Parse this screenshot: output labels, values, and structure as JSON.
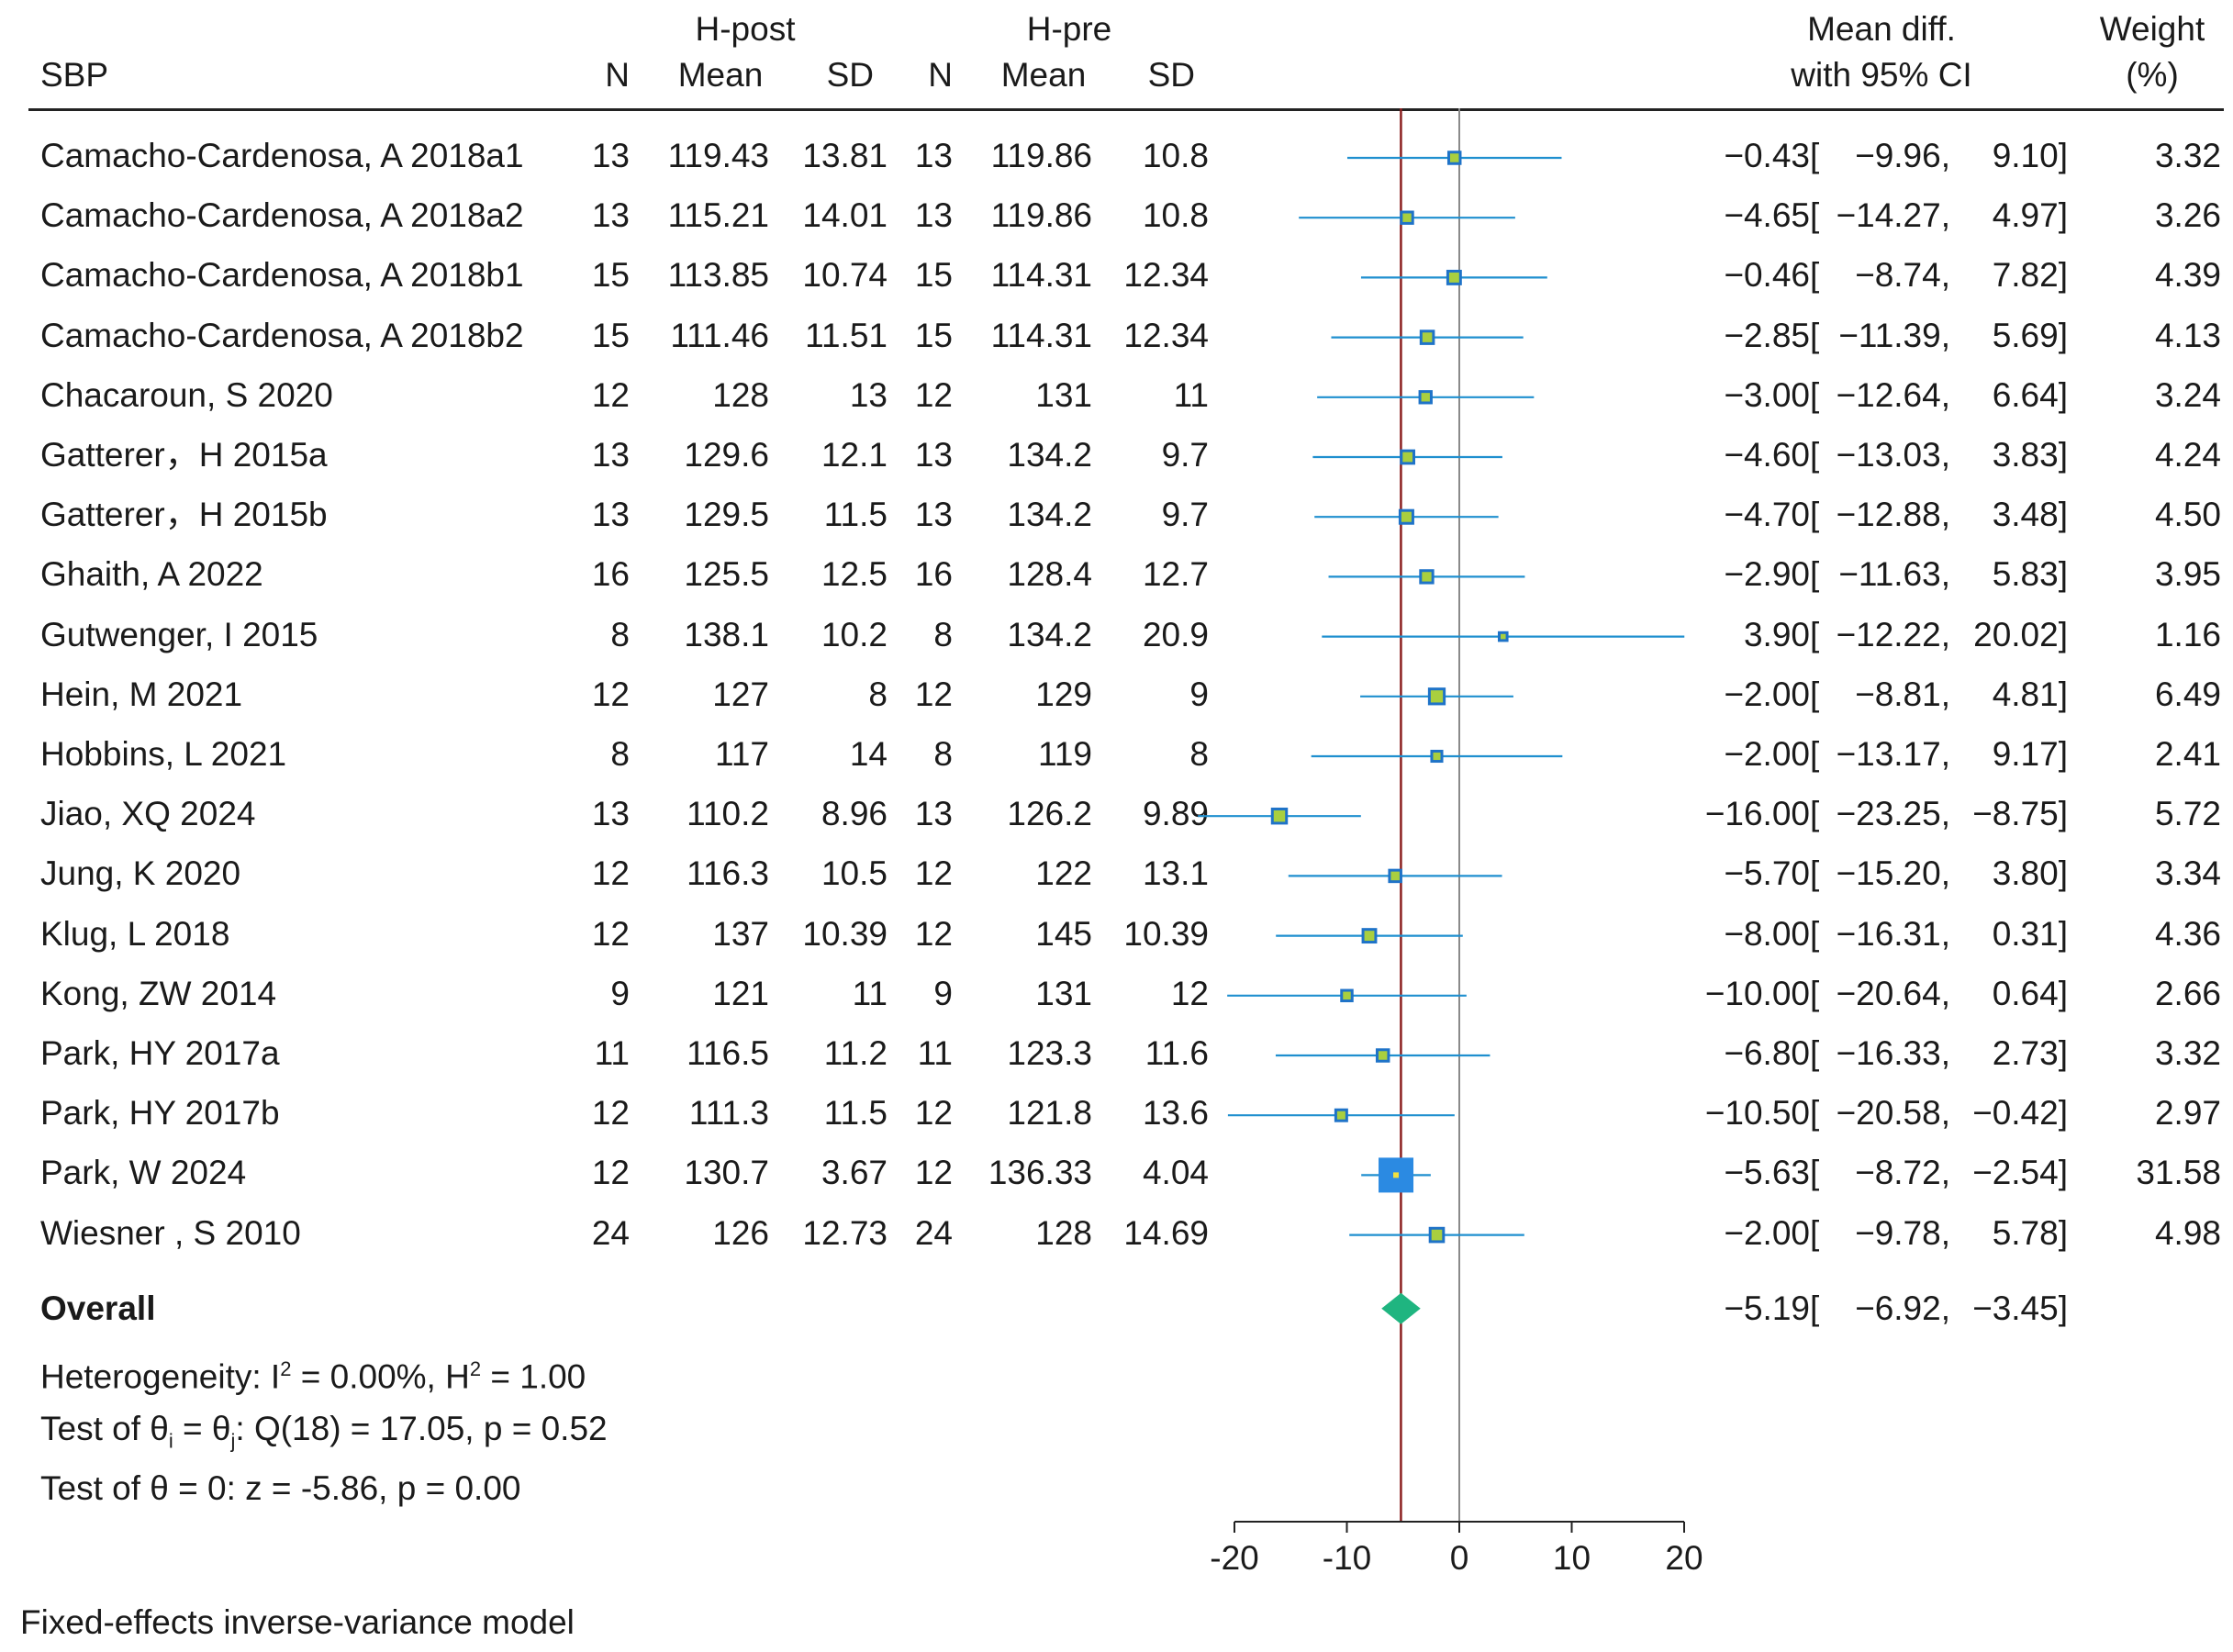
{
  "header": {
    "outcome": "SBP",
    "group1_label": "H-post",
    "group2_label": "H-pre",
    "col_n": "N",
    "col_mean": "Mean",
    "col_sd": "SD",
    "effect_header_line1": "Mean diff.",
    "effect_header_line2": "with 95% CI",
    "weight_header_line1": "Weight",
    "weight_header_line2": "(%)"
  },
  "studies": [
    {
      "name": "Camacho-Cardenosa, A 2018a1",
      "n1": "13",
      "mean1": "119.43",
      "sd1": "13.81",
      "n2": "13",
      "mean2": "119.86",
      "sd2": "10.8",
      "est": -0.43,
      "lo": -9.96,
      "hi": 9.1,
      "ci_text": "−0.43 [ −9.96, 9.10]",
      "est_text": "−0.43",
      "lo_text": "−9.96,",
      "hi_text": "9.10]",
      "weight": "3.32",
      "w": 3.32
    },
    {
      "name": "Camacho-Cardenosa, A 2018a2",
      "n1": "13",
      "mean1": "115.21",
      "sd1": "14.01",
      "n2": "13",
      "mean2": "119.86",
      "sd2": "10.8",
      "est": -4.65,
      "lo": -14.27,
      "hi": 4.97,
      "est_text": "−4.65",
      "lo_text": "−14.27,",
      "hi_text": "4.97]",
      "weight": "3.26",
      "w": 3.26
    },
    {
      "name": "Camacho-Cardenosa, A 2018b1",
      "n1": "15",
      "mean1": "113.85",
      "sd1": "10.74",
      "n2": "15",
      "mean2": "114.31",
      "sd2": "12.34",
      "est": -0.46,
      "lo": -8.74,
      "hi": 7.82,
      "est_text": "−0.46",
      "lo_text": "−8.74,",
      "hi_text": "7.82]",
      "weight": "4.39",
      "w": 4.39
    },
    {
      "name": "Camacho-Cardenosa, A 2018b2",
      "n1": "15",
      "mean1": "111.46",
      "sd1": "11.51",
      "n2": "15",
      "mean2": "114.31",
      "sd2": "12.34",
      "est": -2.85,
      "lo": -11.39,
      "hi": 5.69,
      "est_text": "−2.85",
      "lo_text": "−11.39,",
      "hi_text": "5.69]",
      "weight": "4.13",
      "w": 4.13
    },
    {
      "name": "Chacaroun, S 2020",
      "n1": "12",
      "mean1": "128",
      "sd1": "13",
      "n2": "12",
      "mean2": "131",
      "sd2": "11",
      "est": -3.0,
      "lo": -12.64,
      "hi": 6.64,
      "est_text": "−3.00",
      "lo_text": "−12.64,",
      "hi_text": "6.64]",
      "weight": "3.24",
      "w": 3.24
    },
    {
      "name": "Gatterer，H 2015a",
      "n1": "13",
      "mean1": "129.6",
      "sd1": "12.1",
      "n2": "13",
      "mean2": "134.2",
      "sd2": "9.7",
      "est": -4.6,
      "lo": -13.03,
      "hi": 3.83,
      "est_text": "−4.60",
      "lo_text": "−13.03,",
      "hi_text": "3.83]",
      "weight": "4.24",
      "w": 4.24
    },
    {
      "name": "Gatterer，H 2015b",
      "n1": "13",
      "mean1": "129.5",
      "sd1": "11.5",
      "n2": "13",
      "mean2": "134.2",
      "sd2": "9.7",
      "est": -4.7,
      "lo": -12.88,
      "hi": 3.48,
      "est_text": "−4.70",
      "lo_text": "−12.88,",
      "hi_text": "3.48]",
      "weight": "4.50",
      "w": 4.5
    },
    {
      "name": "Ghaith, A 2022",
      "n1": "16",
      "mean1": "125.5",
      "sd1": "12.5",
      "n2": "16",
      "mean2": "128.4",
      "sd2": "12.7",
      "est": -2.9,
      "lo": -11.63,
      "hi": 5.83,
      "est_text": "−2.90",
      "lo_text": "−11.63,",
      "hi_text": "5.83]",
      "weight": "3.95",
      "w": 3.95
    },
    {
      "name": "Gutwenger, I 2015",
      "n1": "8",
      "mean1": "138.1",
      "sd1": "10.2",
      "n2": "8",
      "mean2": "134.2",
      "sd2": "20.9",
      "est": 3.9,
      "lo": -12.22,
      "hi": 20.02,
      "est_text": "3.90",
      "lo_text": "−12.22,",
      "hi_text": "20.02]",
      "weight": "1.16",
      "w": 1.16
    },
    {
      "name": "Hein, M 2021",
      "n1": "12",
      "mean1": "127",
      "sd1": "8",
      "n2": "12",
      "mean2": "129",
      "sd2": "9",
      "est": -2.0,
      "lo": -8.81,
      "hi": 4.81,
      "est_text": "−2.00",
      "lo_text": "−8.81,",
      "hi_text": "4.81]",
      "weight": "6.49",
      "w": 6.49
    },
    {
      "name": "Hobbins, L 2021",
      "n1": "8",
      "mean1": "117",
      "sd1": "14",
      "n2": "8",
      "mean2": "119",
      "sd2": "8",
      "est": -2.0,
      "lo": -13.17,
      "hi": 9.17,
      "est_text": "−2.00",
      "lo_text": "−13.17,",
      "hi_text": "9.17]",
      "weight": "2.41",
      "w": 2.41
    },
    {
      "name": "Jiao, XQ 2024",
      "n1": "13",
      "mean1": "110.2",
      "sd1": "8.96",
      "n2": "13",
      "mean2": "126.2",
      "sd2": "9.89",
      "est": -16.0,
      "lo": -23.25,
      "hi": -8.75,
      "est_text": "−16.00",
      "lo_text": "−23.25,",
      "hi_text": "−8.75]",
      "weight": "5.72",
      "w": 5.72
    },
    {
      "name": "Jung, K 2020",
      "n1": "12",
      "mean1": "116.3",
      "sd1": "10.5",
      "n2": "12",
      "mean2": "122",
      "sd2": "13.1",
      "est": -5.7,
      "lo": -15.2,
      "hi": 3.8,
      "est_text": "−5.70",
      "lo_text": "−15.20,",
      "hi_text": "3.80]",
      "weight": "3.34",
      "w": 3.34
    },
    {
      "name": "Klug, L 2018",
      "n1": "12",
      "mean1": "137",
      "sd1": "10.39",
      "n2": "12",
      "mean2": "145",
      "sd2": "10.39",
      "est": -8.0,
      "lo": -16.31,
      "hi": 0.31,
      "est_text": "−8.00",
      "lo_text": "−16.31,",
      "hi_text": "0.31]",
      "weight": "4.36",
      "w": 4.36
    },
    {
      "name": "Kong, ZW 2014",
      "n1": "9",
      "mean1": "121",
      "sd1": "11",
      "n2": "9",
      "mean2": "131",
      "sd2": "12",
      "est": -10.0,
      "lo": -20.64,
      "hi": 0.64,
      "est_text": "−10.00",
      "lo_text": "−20.64,",
      "hi_text": "0.64]",
      "weight": "2.66",
      "w": 2.66
    },
    {
      "name": "Park, HY 2017a",
      "n1": "11",
      "mean1": "116.5",
      "sd1": "11.2",
      "n2": "11",
      "mean2": "123.3",
      "sd2": "11.6",
      "est": -6.8,
      "lo": -16.33,
      "hi": 2.73,
      "est_text": "−6.80",
      "lo_text": "−16.33,",
      "hi_text": "2.73]",
      "weight": "3.32",
      "w": 3.32
    },
    {
      "name": "Park, HY 2017b",
      "n1": "12",
      "mean1": "111.3",
      "sd1": "11.5",
      "n2": "12",
      "mean2": "121.8",
      "sd2": "13.6",
      "est": -10.5,
      "lo": -20.58,
      "hi": -0.42,
      "est_text": "−10.50",
      "lo_text": "−20.58,",
      "hi_text": "−0.42]",
      "weight": "2.97",
      "w": 2.97
    },
    {
      "name": "Park, W 2024",
      "n1": "12",
      "mean1": "130.7",
      "sd1": "3.67",
      "n2": "12",
      "mean2": "136.33",
      "sd2": "4.04",
      "est": -5.63,
      "lo": -8.72,
      "hi": -2.54,
      "est_text": "−5.63",
      "lo_text": "−8.72,",
      "hi_text": "−2.54]",
      "weight": "31.58",
      "w": 31.58
    },
    {
      "name": "Wiesner , S 2010",
      "n1": "24",
      "mean1": "126",
      "sd1": "12.73",
      "n2": "24",
      "mean2": "128",
      "sd2": "14.69",
      "est": -2.0,
      "lo": -9.78,
      "hi": 5.78,
      "est_text": "−2.00",
      "lo_text": "−9.78,",
      "hi_text": "5.78]",
      "weight": "4.98",
      "w": 4.98
    }
  ],
  "overall": {
    "label": "Overall",
    "est": -5.19,
    "lo": -6.92,
    "hi": -3.45,
    "est_text": "−5.19",
    "lo_text": "−6.92,",
    "hi_text": "−3.45]"
  },
  "stats": {
    "heterogeneity_prefix": "Heterogeneity: I",
    "heterogeneity_sup1": "2",
    "heterogeneity_mid": " = 0.00%, H",
    "heterogeneity_sup2": "2",
    "heterogeneity_suffix": " = 1.00",
    "test_prefix": "Test of θ",
    "test_sub1": "i",
    "test_mid": " = θ",
    "test_sub2": "j",
    "test_suffix": ": Q(18) = 17.05, p = 0.52",
    "zero_test": "Test of θ = 0: z = -5.86, p = 0.00"
  },
  "footer": "Fixed-effects inverse-variance model",
  "chart_data": {
    "type": "forest",
    "title": "SBP",
    "xlabel": "Mean diff. with 95% CI",
    "xlim": [
      -20,
      20
    ],
    "xticks": [
      -20,
      -10,
      0,
      10,
      20
    ],
    "xtick_labels": [
      "-20",
      "-10",
      "0",
      "10",
      "20"
    ],
    "reference_line": 0,
    "pooled_line": -5.19,
    "colors": {
      "ci_line": "#1f8fcf",
      "marker_fill": "#a9cf3f",
      "marker_border": "#1f73c8",
      "big_marker": "#2b8ae2",
      "diamond": "#1fb580",
      "pooled_line": "#8b2020",
      "zero_line": "#8a8a8a"
    }
  }
}
